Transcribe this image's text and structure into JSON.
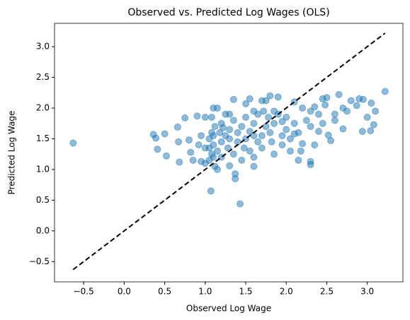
{
  "chart_data": {
    "type": "scatter",
    "title": "Observed vs. Predicted Log Wages (OLS)",
    "x_label": "Observed Log Wage",
    "y_label": "Predicted Log Wage",
    "color": "#1f77b4",
    "alpha": 0.5,
    "x": [
      -0.63,
      1.43,
      1.07,
      3.22,
      0.36,
      0.39,
      0.41,
      0.52,
      0.5,
      0.66,
      0.67,
      0.68,
      0.75,
      0.8,
      0.82,
      0.85,
      0.9,
      0.95,
      1.0,
      1.0,
      1.37,
      1.37,
      1.3,
      1.6,
      2.3,
      2.3,
      2.7,
      2.94,
      3.04,
      3.0,
      3.05,
      3.08,
      3.1,
      2.9,
      2.95,
      2.87,
      2.8,
      2.65,
      2.6,
      2.5,
      2.45,
      2.48,
      2.55,
      2.52,
      2.4,
      2.2,
      2.18,
      2.15,
      2.05,
      1.95,
      1.85,
      1.7,
      1.6,
      1.55,
      1.8,
      1.75,
      1.55,
      1.35,
      1.5,
      1.7,
      1.9,
      2.1,
      2.2,
      2.3,
      2.35,
      2.4,
      2.25,
      2.1,
      2.0,
      1.95,
      1.9,
      1.85,
      1.8,
      1.78,
      1.82,
      1.75,
      1.7,
      1.65,
      1.6,
      1.55,
      1.5,
      1.5,
      1.48,
      1.45,
      1.4,
      1.4,
      1.35,
      1.3,
      1.3,
      1.28,
      1.25,
      1.25,
      1.2,
      1.2,
      1.18,
      1.15,
      1.15,
      1.12,
      1.1,
      1.1,
      1.1,
      1.08,
      1.08,
      1.08,
      1.1,
      1.05,
      1.05,
      1.05,
      1.12,
      1.15,
      1.2,
      1.35,
      1.45,
      1.6,
      1.65,
      1.72,
      1.85,
      2.0,
      2.05,
      2.15,
      2.3,
      2.45,
      2.6,
      2.7,
      2.75,
      2.35,
      2.1,
      1.95,
      1.6,
      1.3,
      1.22,
      0.95,
      0.92,
      1.0
    ],
    "values": [
      1.43,
      0.44,
      0.65,
      2.27,
      1.57,
      1.51,
      1.33,
      1.22,
      1.58,
      1.69,
      1.45,
      1.12,
      1.84,
      1.48,
      1.28,
      1.15,
      1.87,
      1.13,
      1.1,
      1.85,
      0.85,
      0.93,
      1.06,
      1.05,
      1.13,
      1.08,
      1.66,
      1.62,
      1.63,
      1.85,
      2.08,
      1.73,
      1.95,
      2.15,
      2.14,
      2.04,
      2.12,
      2.22,
      1.9,
      2.17,
      2.15,
      2.05,
      1.47,
      1.56,
      1.62,
      1.42,
      1.3,
      1.15,
      1.3,
      1.4,
      1.25,
      1.35,
      1.2,
      1.3,
      2.2,
      2.12,
      2.15,
      2.14,
      2.07,
      2.12,
      2.18,
      2.1,
      2.0,
      1.95,
      2.02,
      1.9,
      1.8,
      1.75,
      1.65,
      1.55,
      1.9,
      1.75,
      1.6,
      1.85,
      1.45,
      1.7,
      1.55,
      1.9,
      1.75,
      1.62,
      1.85,
      1.5,
      1.35,
      1.7,
      1.6,
      1.45,
      1.8,
      1.65,
      1.5,
      1.35,
      1.9,
      1.55,
      1.75,
      1.45,
      1.6,
      2.0,
      1.3,
      1.7,
      1.55,
      1.4,
      1.2,
      1.85,
      1.6,
      1.25,
      2.0,
      1.5,
      1.35,
      1.15,
      1.05,
      1.0,
      1.2,
      1.25,
      1.15,
      1.55,
      1.45,
      1.95,
      1.95,
      1.85,
      1.5,
      1.6,
      1.7,
      1.75,
      1.8,
      2.0,
      1.95,
      1.4,
      1.58,
      1.78,
      1.95,
      1.9,
      1.68,
      1.55,
      1.4,
      1.35
    ],
    "reference_line": {
      "x": [
        -0.63,
        3.22
      ],
      "y": [
        -0.63,
        3.22
      ],
      "color": "#000000",
      "dashed": true
    },
    "xlim": [
      -0.86,
      3.44
    ],
    "ylim": [
      -0.83,
      3.38
    ],
    "xticks": [
      {
        "value": -0.5,
        "label": "−0.5"
      },
      {
        "value": 0,
        "label": "0.0"
      },
      0.5,
      {
        "value": 1,
        "label": "1.0"
      },
      1.5,
      {
        "value": 2,
        "label": "2.0"
      },
      2.5,
      {
        "value": 3,
        "label": "3.0"
      }
    ],
    "yticks": [
      {
        "value": -0.5,
        "label": "−0.5"
      },
      {
        "value": 0,
        "label": "0.0"
      },
      0.5,
      {
        "value": 1,
        "label": "1.0"
      },
      1.5,
      {
        "value": 2,
        "label": "2.0"
      },
      2.5,
      {
        "value": 3,
        "label": "3.0"
      }
    ],
    "grid": false
  }
}
